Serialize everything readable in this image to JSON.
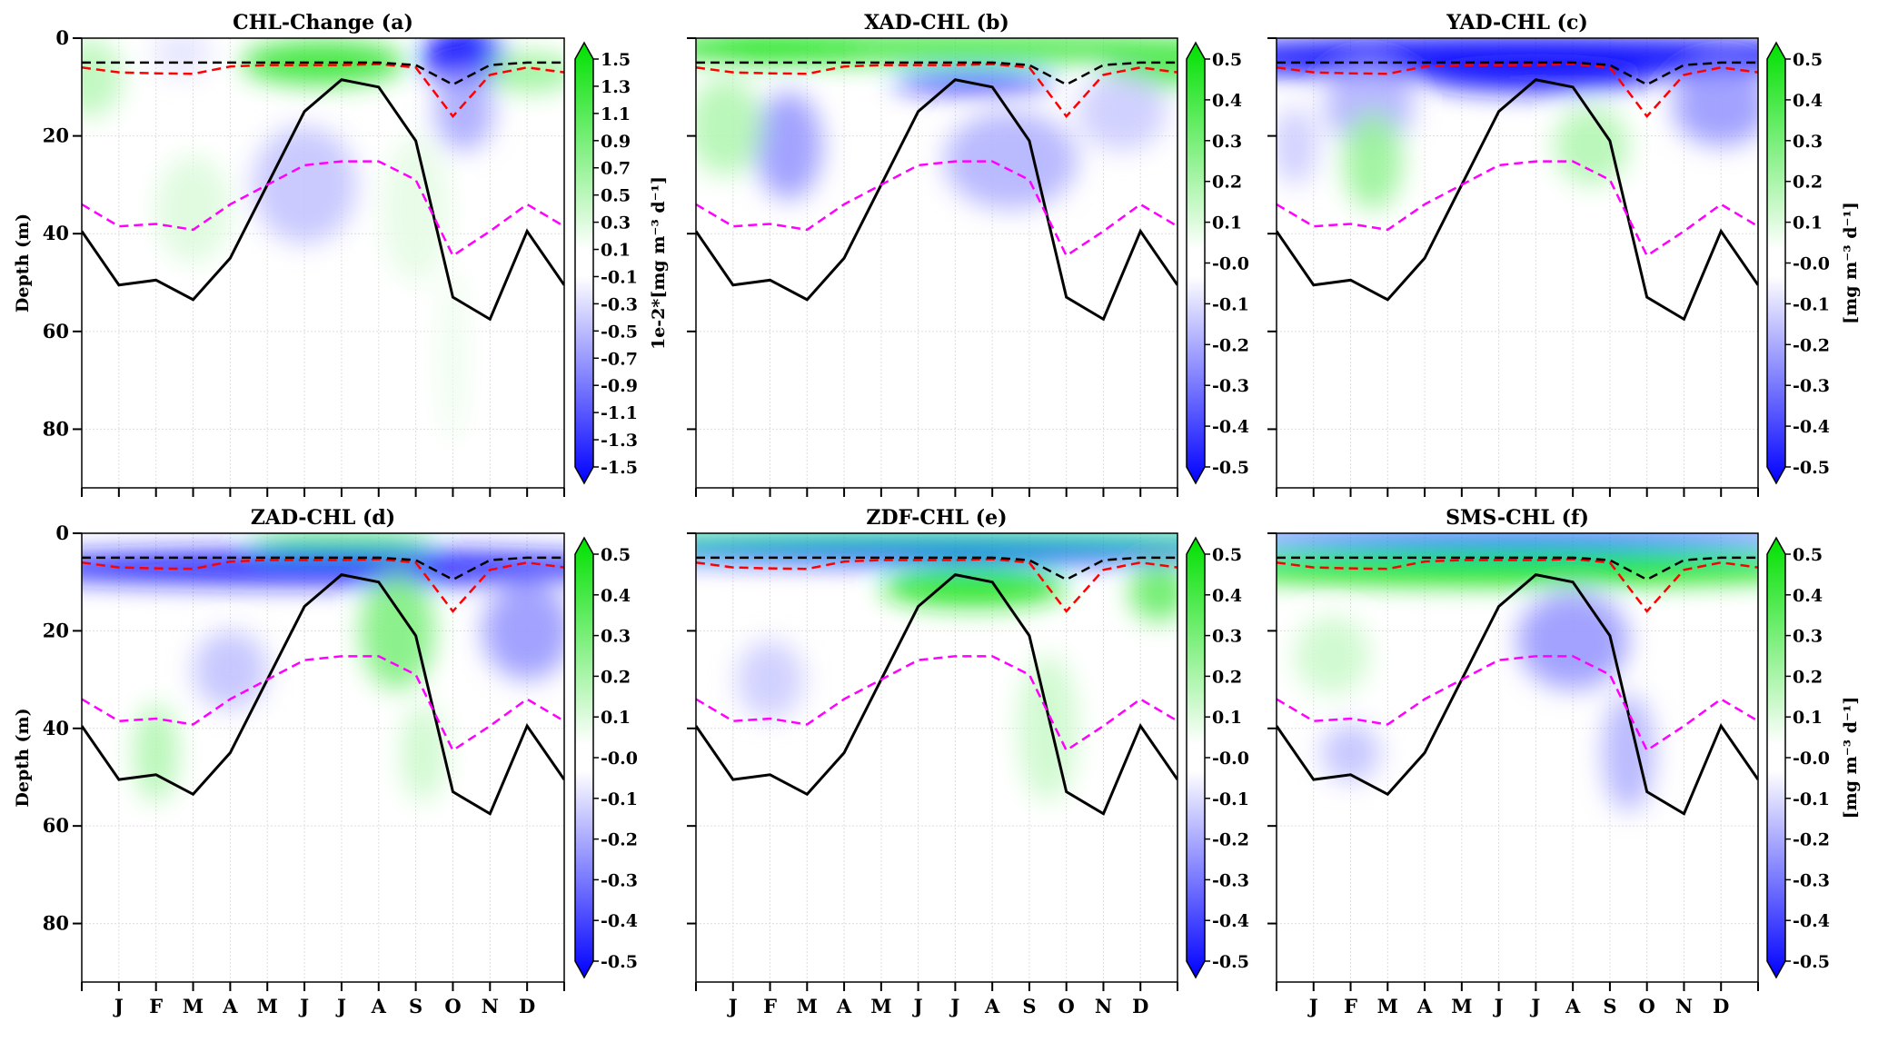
{
  "chart_data": {
    "type": "heatmap",
    "ylabel": "Depth (m)",
    "ylim": [
      92,
      0
    ],
    "yticks": [
      "0",
      "20",
      "40",
      "60",
      "80"
    ],
    "ytick_values": [
      0,
      20,
      40,
      60,
      80
    ],
    "month_labels": [
      "J",
      "F",
      "M",
      "A",
      "M",
      "J",
      "J",
      "A",
      "S",
      "O",
      "N",
      "D"
    ],
    "x_index_range": [
      0,
      13
    ],
    "lines": {
      "black_solid": [
        39.5,
        50.5,
        49.5,
        53.5,
        45,
        30,
        15,
        8.5,
        10,
        21,
        53,
        57.5,
        39.5,
        50.5
      ],
      "magenta_dashed": [
        34,
        38.5,
        38,
        39.2,
        34,
        30,
        26,
        25.2,
        25.2,
        29,
        44.5,
        39.5,
        34,
        38.5
      ],
      "red_dashed": [
        6,
        7,
        7.2,
        7.3,
        5.8,
        5.5,
        5.5,
        5.5,
        5.3,
        6,
        16,
        7.5,
        6,
        7
      ],
      "black_dashed": [
        5,
        5,
        5,
        5,
        5,
        5,
        5,
        5,
        5,
        5.5,
        9.5,
        5.5,
        5,
        5
      ]
    },
    "colors": {
      "positive": "#00e000",
      "negative": "#0000ff",
      "zero": "#ffffff",
      "black_solid": "#000000",
      "magenta_dashed": "#ff00ff",
      "red_dashed": "#ff0000",
      "black_dashed": "#000000"
    },
    "panels": [
      {
        "title": "CHL-Change (a)",
        "vmax": 1.5,
        "cbar_ticks": [
          "1.5",
          "1.3",
          "1.1",
          "0.9",
          "0.7",
          "0.5",
          "0.3",
          "0.1",
          "-0.1",
          "-0.3",
          "-0.5",
          "-0.7",
          "-0.9",
          "-1.1",
          "-1.3",
          "-1.5"
        ],
        "cbar_label": "1e-2*[mg m⁻³ d⁻¹]",
        "features": [
          {
            "x": 6.5,
            "depth": 5,
            "rx": 2.2,
            "ry": 4.5,
            "value": 1.2
          },
          {
            "x": 10.3,
            "depth": 4,
            "rx": 1.1,
            "ry": 6,
            "value": -1.5
          },
          {
            "x": 10.3,
            "depth": 15,
            "rx": 0.8,
            "ry": 8,
            "value": -0.5
          },
          {
            "x": 12.1,
            "depth": 7,
            "rx": 1.2,
            "ry": 4,
            "value": 0.6
          },
          {
            "x": 0.2,
            "depth": 8,
            "rx": 0.9,
            "ry": 8,
            "value": 0.4
          },
          {
            "x": 2.7,
            "depth": 3,
            "rx": 0.8,
            "ry": 5,
            "value": -0.15
          },
          {
            "x": 6.0,
            "depth": 30,
            "rx": 1.4,
            "ry": 12,
            "value": -0.35
          },
          {
            "x": 3.0,
            "depth": 35,
            "rx": 1.0,
            "ry": 11,
            "value": 0.2
          },
          {
            "x": 9.0,
            "depth": 35,
            "rx": 0.9,
            "ry": 15,
            "value": 0.15
          },
          {
            "x": 10.0,
            "depth": 65,
            "rx": 0.4,
            "ry": 18,
            "value": 0.1
          }
        ]
      },
      {
        "title": "XAD-CHL (b)",
        "vmax": 0.5,
        "cbar_ticks": [
          "0.5",
          "0.4",
          "0.3",
          "0.2",
          "0.1",
          "-0.0",
          "-0.1",
          "-0.2",
          "-0.3",
          "-0.4",
          "-0.5"
        ],
        "cbar_label": "",
        "features": [
          {
            "x": 6.5,
            "depth": 2,
            "rx": 9,
            "ry": 3,
            "value": 0.4
          },
          {
            "x": 2.0,
            "depth": 2,
            "rx": 2.5,
            "ry": 3,
            "value": 0.45
          },
          {
            "x": 12.5,
            "depth": 5,
            "rx": 1.5,
            "ry": 5,
            "value": 0.35
          },
          {
            "x": 7.5,
            "depth": 9,
            "rx": 2.2,
            "ry": 2,
            "value": -0.45
          },
          {
            "x": 2.5,
            "depth": 22,
            "rx": 0.9,
            "ry": 11,
            "value": -0.2
          },
          {
            "x": 8.5,
            "depth": 25,
            "rx": 1.8,
            "ry": 10,
            "value": -0.15
          },
          {
            "x": 0.8,
            "depth": 18,
            "rx": 1.0,
            "ry": 10,
            "value": 0.15
          },
          {
            "x": 11.5,
            "depth": 15,
            "rx": 1.2,
            "ry": 8,
            "value": -0.1
          }
        ]
      },
      {
        "title": "YAD-CHL (c)",
        "vmax": 0.5,
        "cbar_ticks": [
          "0.5",
          "0.4",
          "0.3",
          "0.2",
          "0.1",
          "-0.0",
          "-0.1",
          "-0.2",
          "-0.3",
          "-0.4",
          "-0.5"
        ],
        "cbar_label": "[mg m⁻³ d⁻¹]",
        "features": [
          {
            "x": 6.5,
            "depth": 4,
            "rx": 9,
            "ry": 4.5,
            "value": -0.5
          },
          {
            "x": 7.0,
            "depth": 8,
            "rx": 3,
            "ry": 3,
            "value": -0.45
          },
          {
            "x": 2.5,
            "depth": 14,
            "rx": 1.2,
            "ry": 8,
            "value": -0.15
          },
          {
            "x": 2.6,
            "depth": 25,
            "rx": 0.8,
            "ry": 10,
            "value": 0.2
          },
          {
            "x": 8.5,
            "depth": 22,
            "rx": 1.0,
            "ry": 8,
            "value": 0.15
          },
          {
            "x": 12.0,
            "depth": 14,
            "rx": 1.3,
            "ry": 8,
            "value": -0.2
          },
          {
            "x": 0.5,
            "depth": 22,
            "rx": 0.6,
            "ry": 8,
            "value": -0.1
          }
        ]
      },
      {
        "title": "ZAD-CHL (d)",
        "vmax": 0.5,
        "cbar_ticks": [
          "0.5",
          "0.4",
          "0.3",
          "0.2",
          "0.1",
          "-0.0",
          "-0.1",
          "-0.2",
          "-0.3",
          "-0.4",
          "-0.5"
        ],
        "cbar_label": "",
        "features": [
          {
            "x": 7.0,
            "depth": 2,
            "rx": 2.5,
            "ry": 2,
            "value": 0.4
          },
          {
            "x": 6.5,
            "depth": 7,
            "rx": 9,
            "ry": 3.5,
            "value": -0.45
          },
          {
            "x": 8.5,
            "depth": 20,
            "rx": 1.0,
            "ry": 12,
            "value": 0.25
          },
          {
            "x": 12.0,
            "depth": 20,
            "rx": 1.2,
            "ry": 10,
            "value": -0.2
          },
          {
            "x": 2.0,
            "depth": 45,
            "rx": 0.6,
            "ry": 10,
            "value": 0.15
          },
          {
            "x": 4.0,
            "depth": 28,
            "rx": 1.0,
            "ry": 8,
            "value": -0.12
          },
          {
            "x": 9.2,
            "depth": 45,
            "rx": 0.6,
            "ry": 10,
            "value": 0.1
          }
        ]
      },
      {
        "title": "ZDF-CHL (e)",
        "vmax": 0.5,
        "cbar_ticks": [
          "0.5",
          "0.4",
          "0.3",
          "0.2",
          "0.1",
          "-0.0",
          "-0.1",
          "-0.2",
          "-0.3",
          "-0.4",
          "-0.5"
        ],
        "cbar_label": "",
        "features": [
          {
            "x": 6.5,
            "depth": 1.5,
            "rx": 9,
            "ry": 2,
            "value": 0.5
          },
          {
            "x": 6.5,
            "depth": 4,
            "rx": 9,
            "ry": 2,
            "value": -0.5
          },
          {
            "x": 7.5,
            "depth": 11,
            "rx": 2.5,
            "ry": 4,
            "value": 0.45
          },
          {
            "x": 12.5,
            "depth": 12,
            "rx": 0.8,
            "ry": 6,
            "value": 0.3
          },
          {
            "x": 2.0,
            "depth": 30,
            "rx": 0.9,
            "ry": 8,
            "value": -0.1
          },
          {
            "x": 9.5,
            "depth": 40,
            "rx": 0.8,
            "ry": 15,
            "value": 0.1
          }
        ]
      },
      {
        "title": "SMS-CHL (f)",
        "vmax": 0.5,
        "cbar_ticks": [
          "0.5",
          "0.4",
          "0.3",
          "0.2",
          "0.1",
          "-0.0",
          "-0.1",
          "-0.2",
          "-0.3",
          "-0.4",
          "-0.5"
        ],
        "cbar_label": "[mg m⁻³ d⁻¹]",
        "features": [
          {
            "x": 6.5,
            "depth": 1.2,
            "rx": 9,
            "ry": 1.8,
            "value": -0.5
          },
          {
            "x": 6.5,
            "depth": 7,
            "rx": 9,
            "ry": 3.5,
            "value": 0.5
          },
          {
            "x": 8.0,
            "depth": 22,
            "rx": 1.5,
            "ry": 10,
            "value": -0.2
          },
          {
            "x": 9.5,
            "depth": 45,
            "rx": 0.7,
            "ry": 12,
            "value": -0.15
          },
          {
            "x": 2.0,
            "depth": 45,
            "rx": 0.8,
            "ry": 6,
            "value": -0.12
          },
          {
            "x": 1.5,
            "depth": 25,
            "rx": 1.0,
            "ry": 8,
            "value": 0.1
          }
        ]
      }
    ]
  }
}
